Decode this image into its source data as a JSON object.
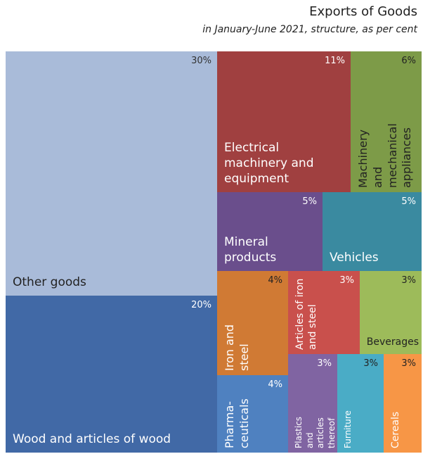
{
  "chart_data": {
    "type": "treemap",
    "title": "Exports of Goods",
    "subtitle": "in January-June 2021, structure, as per cent",
    "categories": [
      "Other goods",
      "Wood and articles of wood",
      "Electrical machinery and equipment",
      "Machinery and mechanical appliances",
      "Mineral products",
      "Vehicles",
      "Iron and steel",
      "Articles of iron and steel",
      "Beverages",
      "Pharma-ceuticals",
      "Plastics and articles thereof",
      "Furniture",
      "Cereals"
    ],
    "values": [
      30,
      20,
      11,
      6,
      5,
      5,
      4,
      3,
      3,
      4,
      3,
      3,
      3
    ],
    "value_labels": [
      "30%",
      "20%",
      "11%",
      "6%",
      "5%",
      "5%",
      "4%",
      "3%",
      "3%",
      "4%",
      "3%",
      "3%",
      "3%"
    ],
    "colors": [
      "#a9bbd9",
      "#4169a6",
      "#a04040",
      "#7d9b48",
      "#6a4e8c",
      "#3a8aa0",
      "#d07a34",
      "#c9504c",
      "#9dbb5a",
      "#4f81c0",
      "#8064a2",
      "#4aacc6",
      "#f79646"
    ]
  }
}
